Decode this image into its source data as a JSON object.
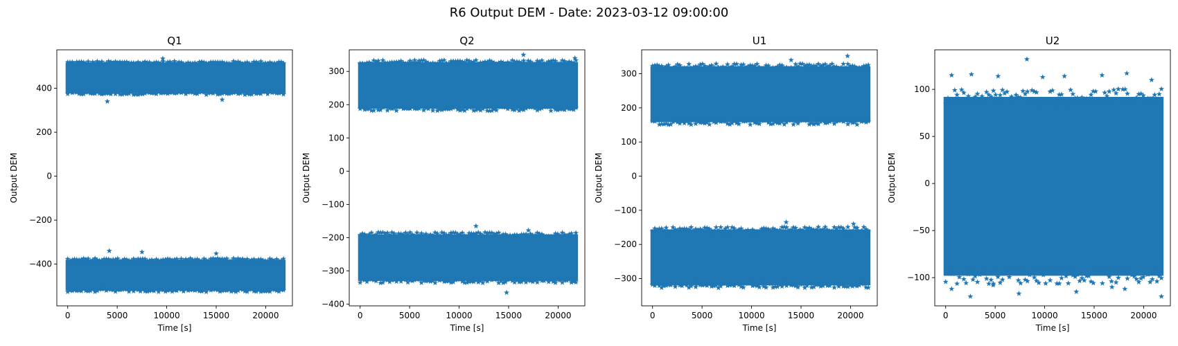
{
  "figure": {
    "title": "R6 Output DEM - Date: 2023-03-12 09:00:00"
  },
  "chart_data": [
    {
      "type": "scatter",
      "title": "Q1",
      "xlabel": "Time [s]",
      "ylabel": "Output DEM",
      "marker": "star",
      "color": "#1f77b4",
      "xlim": [
        -1100,
        22700
      ],
      "ylim": [
        -590,
        575
      ],
      "xticks": [
        0,
        5000,
        10000,
        15000,
        20000
      ],
      "yticks": [
        -400,
        -200,
        0,
        200,
        400
      ],
      "x_range": [
        0,
        21800
      ],
      "bands": [
        {
          "center": 447,
          "halfwidth": 70
        },
        {
          "center": -450,
          "halfwidth": 70
        }
      ],
      "outliers": [
        {
          "x": 4000,
          "y": 340
        },
        {
          "x": 15600,
          "y": 348
        },
        {
          "x": 9600,
          "y": 535
        },
        {
          "x": 4200,
          "y": -340
        },
        {
          "x": 7500,
          "y": -345
        },
        {
          "x": 15000,
          "y": -352
        }
      ]
    },
    {
      "type": "scatter",
      "title": "Q2",
      "xlabel": "Time [s]",
      "ylabel": "Output DEM",
      "marker": "star",
      "color": "#1f77b4",
      "xlim": [
        -1100,
        22700
      ],
      "ylim": [
        -405,
        365
      ],
      "xticks": [
        0,
        5000,
        10000,
        15000,
        20000
      ],
      "yticks": [
        -400,
        -300,
        -200,
        -100,
        0,
        100,
        200,
        300
      ],
      "x_range": [
        0,
        21800
      ],
      "bands": [
        {
          "center": 258,
          "halfwidth": 70
        },
        {
          "center": -260,
          "halfwidth": 70
        }
      ],
      "outliers": [
        {
          "x": 11700,
          "y": -165
        },
        {
          "x": 14800,
          "y": -365
        },
        {
          "x": 17000,
          "y": -178
        },
        {
          "x": 16500,
          "y": 350
        },
        {
          "x": 21700,
          "y": 340
        }
      ]
    },
    {
      "type": "scatter",
      "title": "U1",
      "xlabel": "Time [s]",
      "ylabel": "Output DEM",
      "marker": "star",
      "color": "#1f77b4",
      "xlim": [
        -1100,
        22700
      ],
      "ylim": [
        -380,
        370
      ],
      "xticks": [
        0,
        5000,
        10000,
        15000,
        20000
      ],
      "yticks": [
        -300,
        -200,
        -100,
        0,
        100,
        200,
        300
      ],
      "x_range": [
        0,
        21800
      ],
      "bands": [
        {
          "center": 240,
          "halfwidth": 82
        },
        {
          "center": -238,
          "halfwidth": 82
        }
      ],
      "outliers": [
        {
          "x": 19700,
          "y": 352
        },
        {
          "x": 14000,
          "y": 340
        },
        {
          "x": 20300,
          "y": -140
        },
        {
          "x": 13500,
          "y": -135
        }
      ]
    },
    {
      "type": "scatter",
      "title": "U2",
      "xlabel": "Time [s]",
      "ylabel": "Output DEM",
      "marker": "star",
      "color": "#1f77b4",
      "xlim": [
        -1100,
        22700
      ],
      "ylim": [
        -130,
        142
      ],
      "xticks": [
        0,
        5000,
        10000,
        15000,
        20000
      ],
      "yticks": [
        -100,
        -50,
        0,
        50,
        100
      ],
      "x_range": [
        0,
        21800
      ],
      "bands": [
        {
          "center": -3,
          "halfwidth": 95
        }
      ],
      "outliers": [
        {
          "x": 8200,
          "y": 132
        },
        {
          "x": 18300,
          "y": 117
        },
        {
          "x": 15800,
          "y": 115
        },
        {
          "x": 2600,
          "y": 116
        },
        {
          "x": 600,
          "y": 115
        },
        {
          "x": 5300,
          "y": 114
        },
        {
          "x": 12000,
          "y": 114
        },
        {
          "x": 9800,
          "y": 113
        },
        {
          "x": 20800,
          "y": 110
        },
        {
          "x": 2500,
          "y": -120
        },
        {
          "x": 21800,
          "y": -120
        },
        {
          "x": 7400,
          "y": -117
        },
        {
          "x": 18100,
          "y": -112
        },
        {
          "x": 13200,
          "y": -115
        },
        {
          "x": 600,
          "y": -112
        },
        {
          "x": 16800,
          "y": -110
        },
        {
          "x": 4800,
          "y": -108
        }
      ]
    }
  ]
}
